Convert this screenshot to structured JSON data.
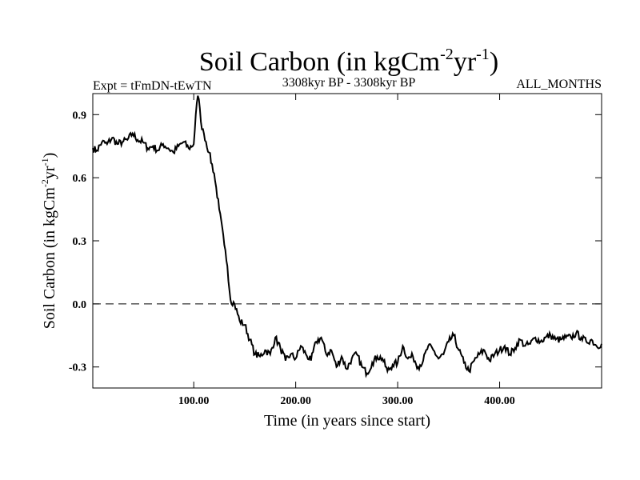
{
  "chart_data": {
    "type": "line",
    "title": {
      "main": "Soil Carbon (in kgCm",
      "sup1": "-2",
      "mid": "yr",
      "sup2": "-1",
      "end": ")"
    },
    "expt_label": "Expt = tFmDN-tEwTN",
    "period_label": "3308kyr BP - 3308kyr BP",
    "months_label": "ALL_MONTHS",
    "xlabel": "Time (in years since start)",
    "ylabel": {
      "main": "Soil Carbon (in kgCm",
      "sup1": "-2",
      "mid": "yr",
      "sup2": "-1",
      "end": ")"
    },
    "xlim": [
      1,
      500
    ],
    "ylim": [
      -0.4,
      1.0
    ],
    "xticks": [
      {
        "value": 100,
        "label": "100.00"
      },
      {
        "value": 200,
        "label": "200.00"
      },
      {
        "value": 300,
        "label": "300.00"
      },
      {
        "value": 400,
        "label": "400.00"
      }
    ],
    "yticks": [
      {
        "value": 0.9,
        "label": "0.9"
      },
      {
        "value": 0.6,
        "label": "0.6"
      },
      {
        "value": 0.3,
        "label": "0.3"
      },
      {
        "value": 0.0,
        "label": "0.0"
      },
      {
        "value": -0.3,
        "label": "-0.3"
      }
    ],
    "zero_line": 0.0,
    "series": [
      {
        "name": "Soil Carbon",
        "color": "#000000",
        "x": [
          1,
          5,
          10,
          15,
          20,
          25,
          30,
          35,
          40,
          45,
          50,
          55,
          60,
          65,
          70,
          75,
          80,
          85,
          90,
          95,
          100,
          102,
          104,
          106,
          108,
          110,
          115,
          120,
          125,
          130,
          133,
          136,
          140,
          145,
          150,
          155,
          160,
          165,
          170,
          175,
          180,
          185,
          190,
          195,
          200,
          205,
          210,
          215,
          220,
          225,
          230,
          235,
          240,
          245,
          250,
          255,
          260,
          265,
          270,
          275,
          280,
          285,
          290,
          295,
          300,
          305,
          310,
          315,
          320,
          325,
          330,
          335,
          340,
          345,
          350,
          355,
          360,
          365,
          370,
          375,
          380,
          385,
          390,
          395,
          400,
          405,
          410,
          415,
          420,
          425,
          430,
          435,
          440,
          445,
          450,
          455,
          460,
          465,
          470,
          475,
          480,
          485,
          490,
          495,
          500
        ],
        "y": [
          0.74,
          0.73,
          0.77,
          0.76,
          0.79,
          0.76,
          0.77,
          0.78,
          0.81,
          0.78,
          0.77,
          0.74,
          0.75,
          0.73,
          0.76,
          0.74,
          0.72,
          0.75,
          0.77,
          0.74,
          0.76,
          0.9,
          0.99,
          0.93,
          0.83,
          0.81,
          0.72,
          0.62,
          0.45,
          0.28,
          0.18,
          0.02,
          0.0,
          -0.08,
          -0.1,
          -0.17,
          -0.24,
          -0.25,
          -0.22,
          -0.24,
          -0.16,
          -0.21,
          -0.27,
          -0.24,
          -0.26,
          -0.2,
          -0.24,
          -0.27,
          -0.18,
          -0.16,
          -0.24,
          -0.22,
          -0.3,
          -0.25,
          -0.31,
          -0.26,
          -0.24,
          -0.3,
          -0.33,
          -0.28,
          -0.25,
          -0.26,
          -0.32,
          -0.29,
          -0.28,
          -0.2,
          -0.26,
          -0.25,
          -0.3,
          -0.27,
          -0.2,
          -0.22,
          -0.26,
          -0.24,
          -0.18,
          -0.15,
          -0.22,
          -0.28,
          -0.32,
          -0.27,
          -0.24,
          -0.22,
          -0.27,
          -0.24,
          -0.22,
          -0.2,
          -0.24,
          -0.21,
          -0.17,
          -0.2,
          -0.19,
          -0.16,
          -0.18,
          -0.16,
          -0.15,
          -0.17,
          -0.17,
          -0.16,
          -0.16,
          -0.14,
          -0.16,
          -0.18,
          -0.17,
          -0.2,
          -0.19
        ]
      }
    ]
  }
}
